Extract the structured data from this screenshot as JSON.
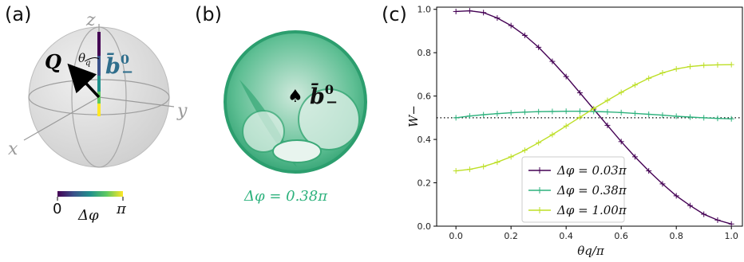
{
  "panels": {
    "a": {
      "label": "(a)",
      "axis_z": "z",
      "axis_y": "y",
      "axis_x": "x",
      "vector_q": "Q",
      "angle_label": "θ",
      "angle_sub": "q",
      "b_label": "b̄",
      "b_sup": "0",
      "b_sub": "−",
      "colorbar": {
        "min_label": "0",
        "max_label": "π",
        "label": "Δφ"
      }
    },
    "b": {
      "label": "(b)",
      "b_label": "b̄",
      "b_sup": "0",
      "b_sub": "−",
      "marker": "♠",
      "caption": "Δφ = 0.38π",
      "color": "#2db27d"
    },
    "c": {
      "label": "(c)"
    }
  },
  "chart_data": {
    "type": "line",
    "xlabel": "θq/π",
    "ylabel": "W−",
    "xlim": [
      -0.07,
      1.04
    ],
    "ylim": [
      0,
      1.01
    ],
    "xticks": [
      "0.0",
      "0.2",
      "0.4",
      "0.6",
      "0.8",
      "1.0"
    ],
    "yticks": [
      "0.0",
      "0.2",
      "0.4",
      "0.6",
      "0.8",
      "1.0"
    ],
    "x": [
      0.0,
      0.05,
      0.1,
      0.15,
      0.2,
      0.25,
      0.3,
      0.35,
      0.4,
      0.45,
      0.5,
      0.55,
      0.6,
      0.65,
      0.7,
      0.75,
      0.8,
      0.85,
      0.9,
      0.95,
      1.0
    ],
    "series": [
      {
        "name": "Δφ = 0.03π",
        "color": "#440154",
        "values": [
          0.99,
          0.993,
          0.985,
          0.96,
          0.925,
          0.88,
          0.825,
          0.76,
          0.69,
          0.615,
          0.54,
          0.465,
          0.39,
          0.32,
          0.255,
          0.195,
          0.14,
          0.095,
          0.055,
          0.028,
          0.01
        ]
      },
      {
        "name": "Δφ = 0.38π",
        "color": "#2db27d",
        "values": [
          0.5,
          0.508,
          0.514,
          0.519,
          0.523,
          0.526,
          0.528,
          0.529,
          0.53,
          0.53,
          0.529,
          0.527,
          0.524,
          0.52,
          0.516,
          0.512,
          0.507,
          0.503,
          0.5,
          0.497,
          0.495
        ]
      },
      {
        "name": "Δφ = 1.00π",
        "color": "#bddf26",
        "values": [
          0.255,
          0.262,
          0.275,
          0.295,
          0.32,
          0.35,
          0.385,
          0.422,
          0.462,
          0.502,
          0.542,
          0.58,
          0.617,
          0.651,
          0.682,
          0.707,
          0.725,
          0.736,
          0.742,
          0.744,
          0.745
        ]
      }
    ],
    "reference_line": {
      "y": 0.5,
      "style": "dotted"
    },
    "legend_position": "lower-center",
    "grid": false
  }
}
